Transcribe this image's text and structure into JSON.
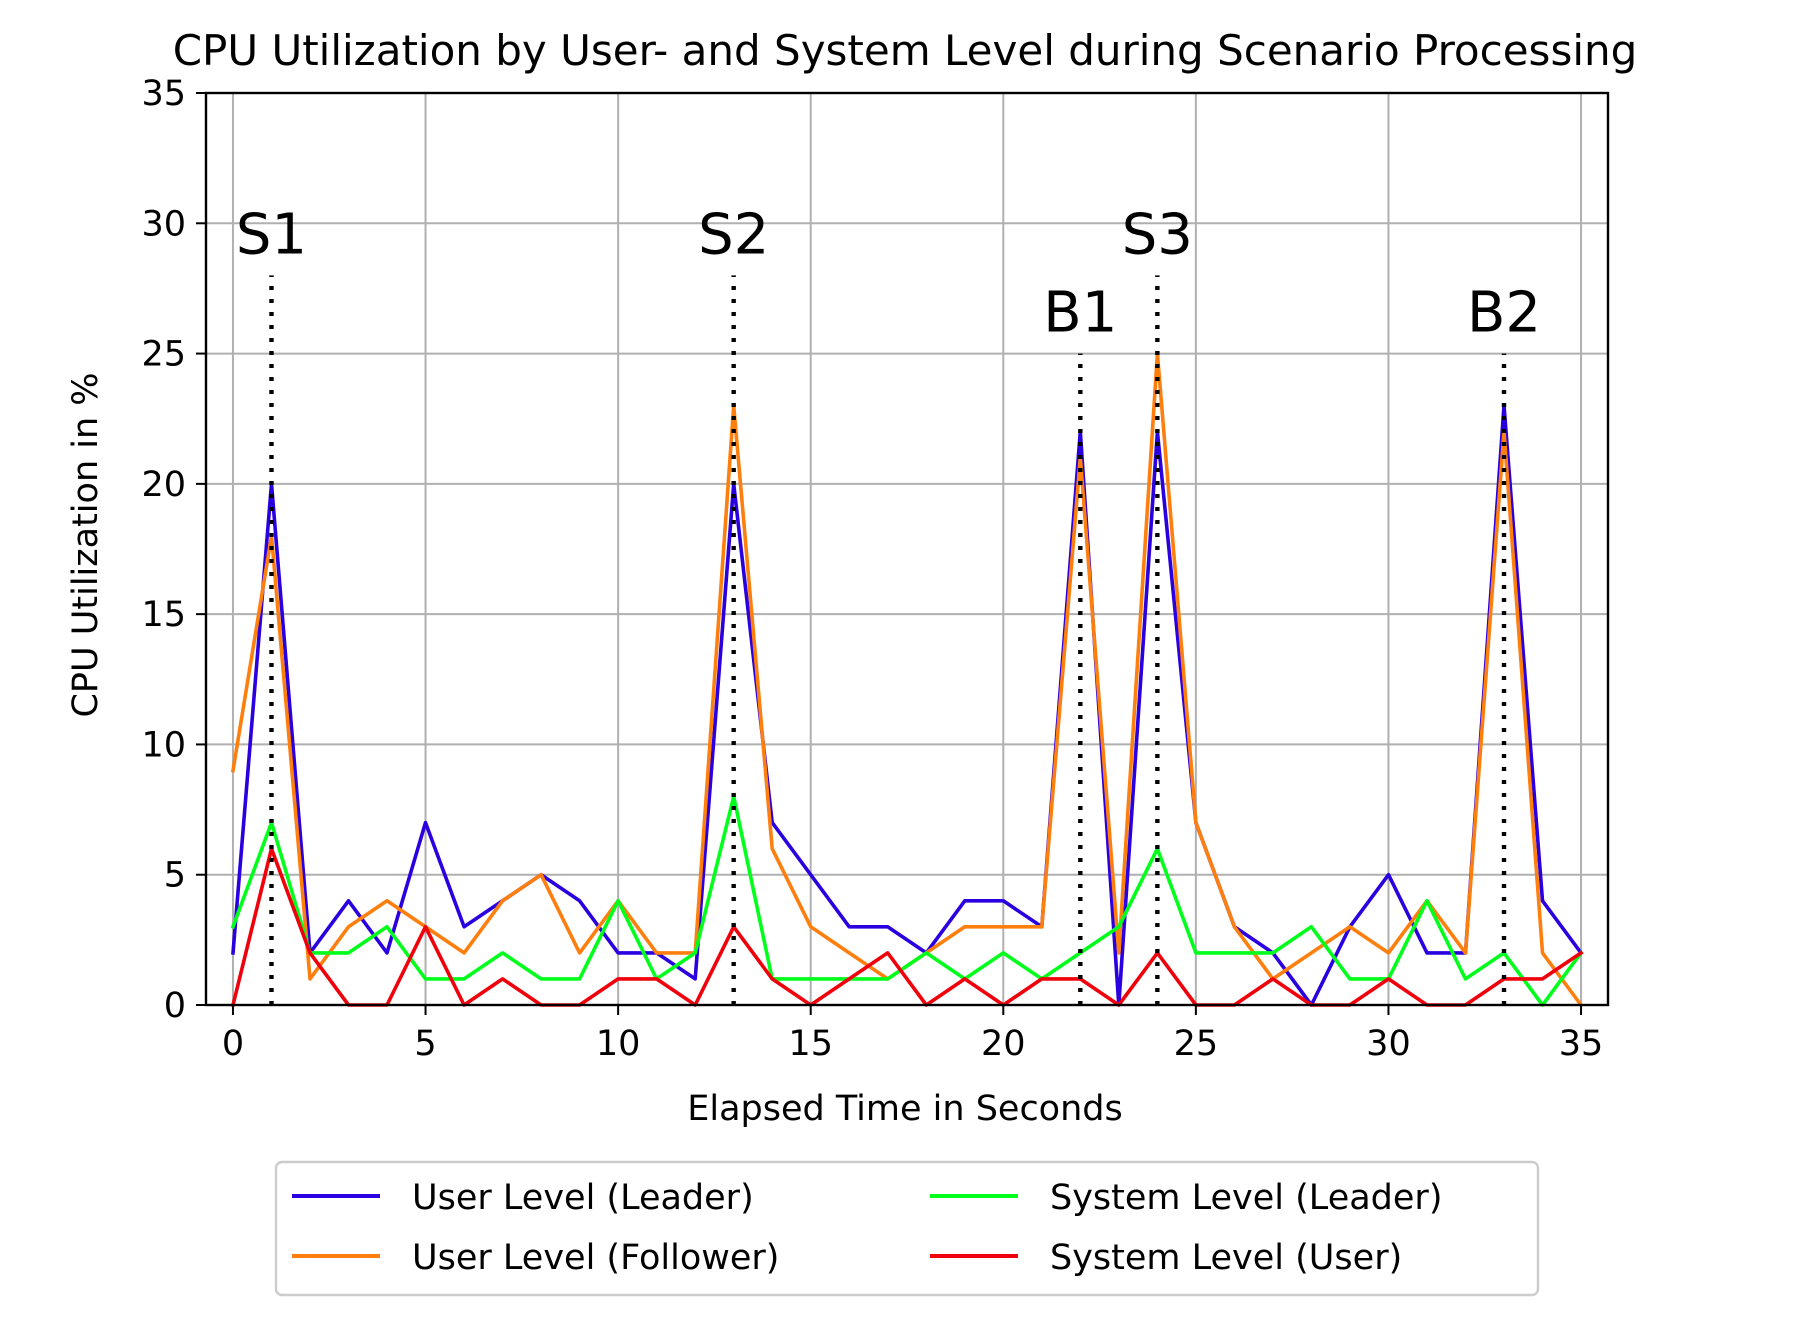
{
  "chart_data": {
    "type": "line",
    "title": "CPU Utilization by User- and System Level during Scenario Processing",
    "xlabel": "Elapsed Time in Seconds",
    "ylabel": "CPU Utilization in %",
    "xlim": [
      -0.7,
      35.7
    ],
    "ylim": [
      0,
      35
    ],
    "xticks": [
      "0",
      "5",
      "10",
      "15",
      "20",
      "25",
      "30",
      "35"
    ],
    "yticks": [
      "0",
      "5",
      "10",
      "15",
      "20",
      "25",
      "30",
      "35"
    ],
    "grid": true,
    "legend_position": "bottom-center",
    "x": [
      0,
      1,
      2,
      3,
      4,
      5,
      6,
      7,
      8,
      9,
      10,
      11,
      12,
      13,
      14,
      15,
      16,
      17,
      18,
      19,
      20,
      21,
      22,
      23,
      24,
      25,
      26,
      27,
      28,
      29,
      30,
      31,
      32,
      33,
      34,
      35
    ],
    "series": [
      {
        "name": "User Level (Leader)",
        "color": "#2a00e0",
        "values": [
          2,
          20,
          2,
          4,
          2,
          7,
          3,
          4,
          5,
          4,
          2,
          2,
          1,
          20,
          7,
          5,
          3,
          3,
          2,
          4,
          4,
          3,
          22,
          0,
          22,
          7,
          3,
          2,
          0,
          3,
          5,
          2,
          2,
          23,
          4,
          2
        ]
      },
      {
        "name": "User Level (Follower)",
        "color": "#ff7f0e",
        "values": [
          9,
          18,
          1,
          3,
          4,
          3,
          2,
          4,
          5,
          2,
          4,
          2,
          2,
          23,
          6,
          3,
          2,
          1,
          2,
          3,
          3,
          3,
          21,
          2,
          25,
          7,
          3,
          1,
          2,
          3,
          2,
          4,
          2,
          22,
          2,
          0
        ]
      },
      {
        "name": "System Level (Leader)",
        "color": "#00ff1a",
        "values": [
          3,
          7,
          2,
          2,
          3,
          1,
          1,
          2,
          1,
          1,
          4,
          1,
          2,
          8,
          1,
          1,
          1,
          1,
          2,
          1,
          2,
          1,
          2,
          3,
          6,
          2,
          2,
          2,
          3,
          1,
          1,
          4,
          1,
          2,
          0,
          2
        ]
      },
      {
        "name": "System Level (User)",
        "color": "#f0000a",
        "values": [
          0,
          6,
          2,
          0,
          0,
          3,
          0,
          1,
          0,
          0,
          1,
          1,
          0,
          3,
          1,
          0,
          1,
          2,
          0,
          1,
          0,
          1,
          1,
          0,
          2,
          0,
          0,
          1,
          0,
          0,
          1,
          0,
          0,
          1,
          1,
          2
        ]
      }
    ],
    "markers": [
      {
        "label": "S1",
        "x": 1,
        "y_top": 28
      },
      {
        "label": "S2",
        "x": 13,
        "y_top": 28
      },
      {
        "label": "B1",
        "x": 22,
        "y_top": 25
      },
      {
        "label": "S3",
        "x": 24,
        "y_top": 28
      },
      {
        "label": "B2",
        "x": 33,
        "y_top": 25
      }
    ]
  }
}
